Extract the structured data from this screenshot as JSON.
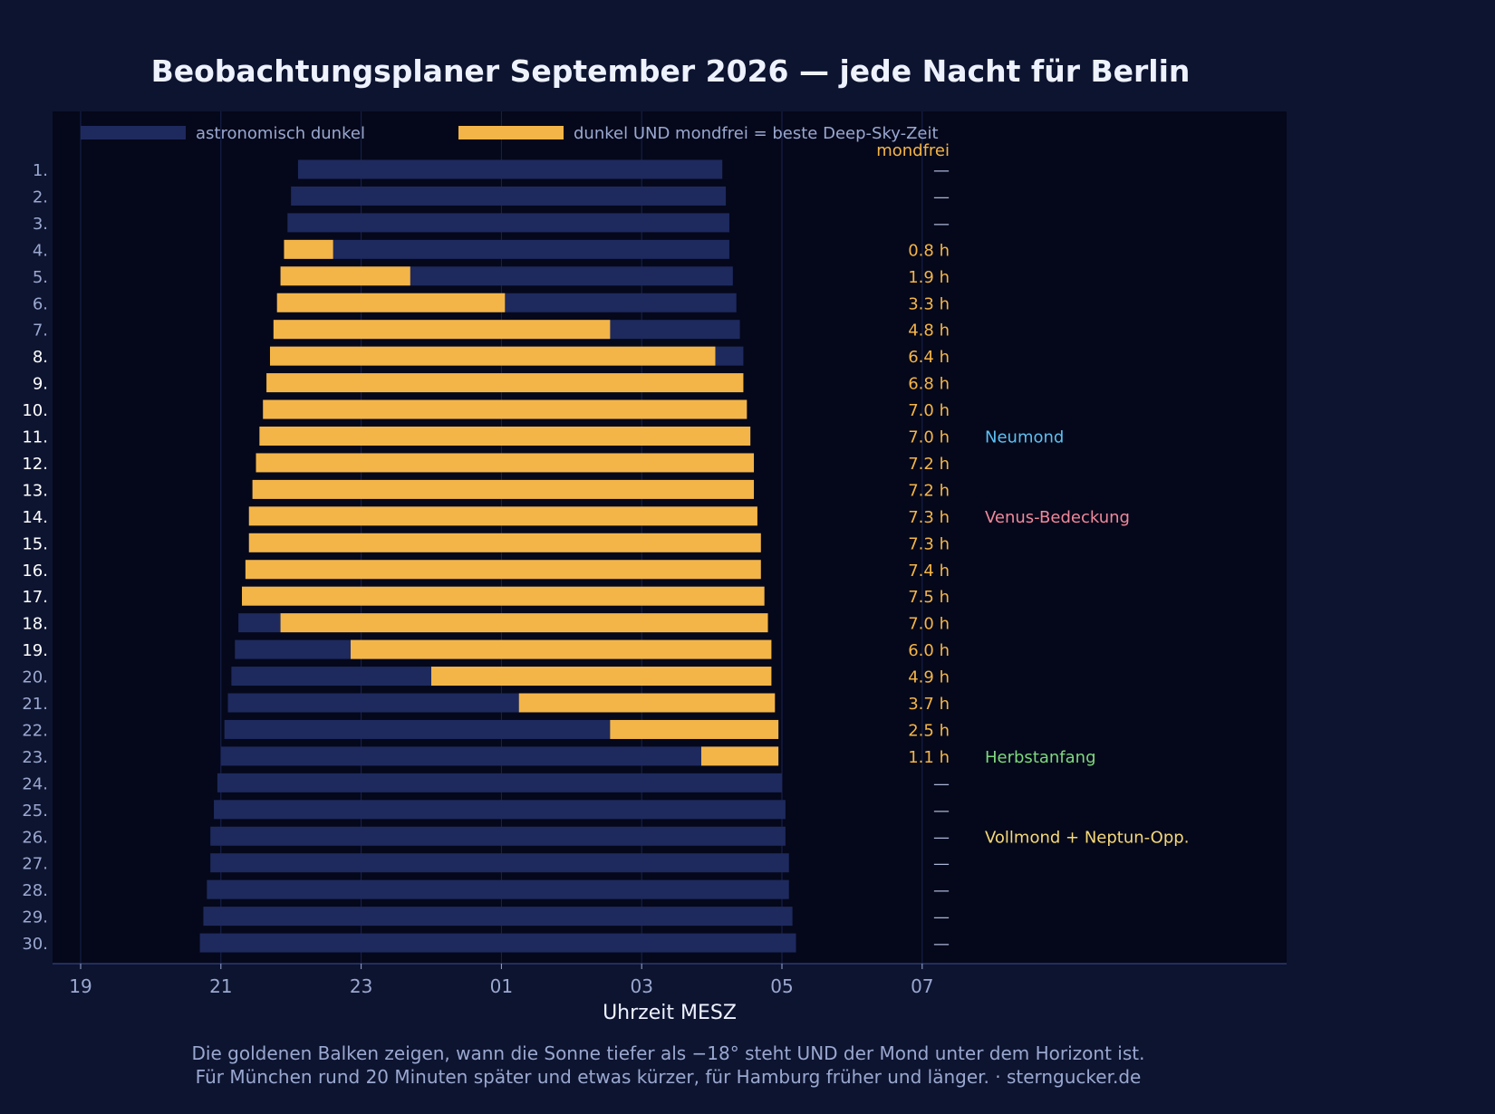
{
  "chart_data": {
    "type": "bar",
    "title": "Beobachtungsplaner September 2026 — jede Nacht für Berlin",
    "xlabel": "Uhrzeit MESZ",
    "x_axis": {
      "range_hours": [
        19,
        31
      ],
      "ticks": [
        19,
        21,
        23,
        25,
        27,
        29,
        31
      ],
      "tick_labels": [
        "19",
        "21",
        "23",
        "01",
        "03",
        "05",
        "07"
      ],
      "grid": true
    },
    "legend": {
      "placement": "top",
      "entries": [
        {
          "label": "astronomisch dunkel",
          "color": "#1e2a5e"
        },
        {
          "label": "dunkel UND mondfrei = beste Deep-Sky-Zeit",
          "color": "#f4b548"
        }
      ]
    },
    "column_header": "mondfrei",
    "nights": [
      {
        "label": "1.",
        "dark": [
          22.1,
          28.15
        ],
        "moonfree": null,
        "hours": "—"
      },
      {
        "label": "2.",
        "dark": [
          22.0,
          28.2
        ],
        "moonfree": null,
        "hours": "—"
      },
      {
        "label": "3.",
        "dark": [
          21.95,
          28.25
        ],
        "moonfree": null,
        "hours": "—"
      },
      {
        "label": "4.",
        "dark": [
          21.9,
          28.25
        ],
        "moonfree": [
          21.9,
          22.6
        ],
        "hours": "0.8 h"
      },
      {
        "label": "5.",
        "dark": [
          21.85,
          28.3
        ],
        "moonfree": [
          21.85,
          23.7
        ],
        "hours": "1.9 h"
      },
      {
        "label": "6.",
        "dark": [
          21.8,
          28.35
        ],
        "moonfree": [
          21.8,
          25.05
        ],
        "hours": "3.3 h"
      },
      {
        "label": "7.",
        "dark": [
          21.75,
          28.4
        ],
        "moonfree": [
          21.75,
          26.55
        ],
        "hours": "4.8 h"
      },
      {
        "label": "8.",
        "dark": [
          21.7,
          28.45
        ],
        "moonfree": [
          21.7,
          28.05
        ],
        "hours": "6.4 h"
      },
      {
        "label": "9.",
        "dark": [
          21.65,
          28.45
        ],
        "moonfree": [
          21.65,
          28.45
        ],
        "hours": "6.8 h"
      },
      {
        "label": "10.",
        "dark": [
          21.6,
          28.5
        ],
        "moonfree": [
          21.6,
          28.5
        ],
        "hours": "7.0 h"
      },
      {
        "label": "11.",
        "dark": [
          21.55,
          28.55
        ],
        "moonfree": [
          21.55,
          28.55
        ],
        "hours": "7.0 h"
      },
      {
        "label": "12.",
        "dark": [
          21.5,
          28.6
        ],
        "moonfree": [
          21.5,
          28.6
        ],
        "hours": "7.2 h"
      },
      {
        "label": "13.",
        "dark": [
          21.45,
          28.6
        ],
        "moonfree": [
          21.45,
          28.6
        ],
        "hours": "7.2 h"
      },
      {
        "label": "14.",
        "dark": [
          21.4,
          28.65
        ],
        "moonfree": [
          21.4,
          28.65
        ],
        "hours": "7.3 h"
      },
      {
        "label": "15.",
        "dark": [
          21.4,
          28.7
        ],
        "moonfree": [
          21.4,
          28.7
        ],
        "hours": "7.3 h"
      },
      {
        "label": "16.",
        "dark": [
          21.35,
          28.7
        ],
        "moonfree": [
          21.35,
          28.7
        ],
        "hours": "7.4 h"
      },
      {
        "label": "17.",
        "dark": [
          21.3,
          28.75
        ],
        "moonfree": [
          21.3,
          28.75
        ],
        "hours": "7.5 h"
      },
      {
        "label": "18.",
        "dark": [
          21.25,
          28.8
        ],
        "moonfree": [
          21.85,
          28.8
        ],
        "hours": "7.0 h"
      },
      {
        "label": "19.",
        "dark": [
          21.2,
          28.85
        ],
        "moonfree": [
          22.85,
          28.85
        ],
        "hours": "6.0 h"
      },
      {
        "label": "20.",
        "dark": [
          21.15,
          28.85
        ],
        "moonfree": [
          24.0,
          28.85
        ],
        "hours": "4.9 h"
      },
      {
        "label": "21.",
        "dark": [
          21.1,
          28.9
        ],
        "moonfree": [
          25.25,
          28.9
        ],
        "hours": "3.7 h"
      },
      {
        "label": "22.",
        "dark": [
          21.05,
          28.95
        ],
        "moonfree": [
          26.55,
          28.95
        ],
        "hours": "2.5 h"
      },
      {
        "label": "23.",
        "dark": [
          21.0,
          28.95
        ],
        "moonfree": [
          27.85,
          28.95
        ],
        "hours": "1.1 h"
      },
      {
        "label": "24.",
        "dark": [
          20.95,
          29.0
        ],
        "moonfree": null,
        "hours": "—"
      },
      {
        "label": "25.",
        "dark": [
          20.9,
          29.05
        ],
        "moonfree": null,
        "hours": "—"
      },
      {
        "label": "26.",
        "dark": [
          20.85,
          29.05
        ],
        "moonfree": null,
        "hours": "—"
      },
      {
        "label": "27.",
        "dark": [
          20.85,
          29.1
        ],
        "moonfree": null,
        "hours": "—"
      },
      {
        "label": "28.",
        "dark": [
          20.8,
          29.1
        ],
        "moonfree": null,
        "hours": "—"
      },
      {
        "label": "29.",
        "dark": [
          20.75,
          29.15
        ],
        "moonfree": null,
        "hours": "—"
      },
      {
        "label": "30.",
        "dark": [
          20.7,
          29.2
        ],
        "moonfree": null,
        "hours": "—"
      }
    ],
    "weekend_nights": [
      "8.",
      "9.",
      "10.",
      "11.",
      "12.",
      "13.",
      "14.",
      "15.",
      "16.",
      "17.",
      "18.",
      "19."
    ],
    "events": [
      {
        "night": "11.",
        "label": "Neumond",
        "color": "#5cc0f2"
      },
      {
        "night": "14.",
        "label": "Venus-Bedeckung",
        "color": "#f0899c"
      },
      {
        "night": "23.",
        "label": "Herbstanfang",
        "color": "#7fd87f"
      },
      {
        "night": "26.",
        "label": "Vollmond + Neptun-Opp.",
        "color": "#f5d87a"
      }
    ]
  },
  "footer": {
    "line1": "Die goldenen Balken zeigen, wann die Sonne tiefer als −18° steht UND der Mond unter dem Horizont ist.",
    "line2": "Für München rund 20 Minuten später und etwas kürzer, für Hamburg früher und länger. · sterngucker.de"
  },
  "colors": {
    "background": "#0d1430",
    "plot_background": "#05081a",
    "dark_bar": "#1e2a5e",
    "moonfree_bar": "#f4b548",
    "tick_text": "#9aa8d0",
    "title_text": "#eef2ff",
    "hours_text": "#f4b548",
    "dash_text": "#aab4d6"
  }
}
